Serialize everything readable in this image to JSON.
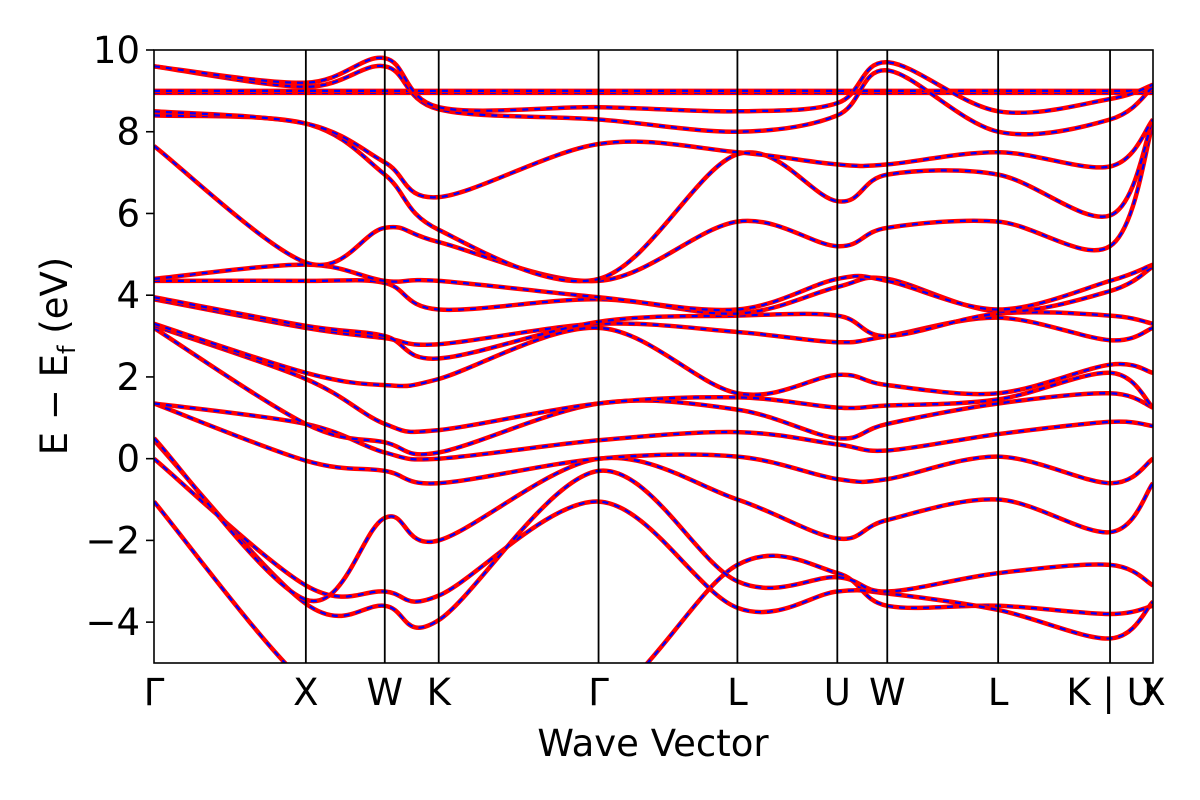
{
  "chart_data": {
    "type": "line",
    "xlabel": "Wave Vector",
    "ylabel_main": "E − E",
    "ylabel_sub": "f",
    "ylabel_unit": " (eV)",
    "ylim": [
      -5,
      10
    ],
    "xlim": [
      0,
      1
    ],
    "yticks": [
      {
        "v": -4,
        "label": "−4"
      },
      {
        "v": -2,
        "label": "−2"
      },
      {
        "v": 0,
        "label": "0"
      },
      {
        "v": 2,
        "label": "2"
      },
      {
        "v": 4,
        "label": "4"
      },
      {
        "v": 6,
        "label": "6"
      },
      {
        "v": 8,
        "label": "8"
      },
      {
        "v": 10,
        "label": "10"
      }
    ],
    "kpoints": [
      {
        "pos": 0.0,
        "label": "Γ"
      },
      {
        "pos": 0.152,
        "label": "X"
      },
      {
        "pos": 0.231,
        "label": "W"
      },
      {
        "pos": 0.285,
        "label": "K"
      },
      {
        "pos": 0.445,
        "label": "Γ"
      },
      {
        "pos": 0.584,
        "label": "L"
      },
      {
        "pos": 0.684,
        "label": "U"
      },
      {
        "pos": 0.734,
        "label": "W"
      },
      {
        "pos": 0.845,
        "label": "L"
      },
      {
        "pos": 0.957,
        "label": "K | U"
      },
      {
        "pos": 1.0,
        "label": "X"
      }
    ],
    "series_styles": [
      {
        "color": "#ff0000",
        "style": "solid"
      },
      {
        "color": "#0000ff",
        "style": "dashed"
      }
    ],
    "bands": [
      [
        -1.05,
        -5.5,
        -5.8,
        -5.9,
        -6.0,
        -2.6,
        -2.8,
        -3.6,
        -3.6,
        -3.8,
        -3.6
      ],
      [
        0.0,
        -3.1,
        -3.25,
        -3.35,
        -1.05,
        -3.65,
        -3.25,
        -3.3,
        -3.7,
        -4.4,
        -3.5
      ],
      [
        0.45,
        -3.55,
        -3.6,
        -3.95,
        -0.3,
        -3.0,
        -2.9,
        -3.25,
        -2.8,
        -2.6,
        -3.1
      ],
      [
        0.5,
        -3.45,
        -1.45,
        -2.0,
        0.0,
        -1.0,
        -1.95,
        -1.5,
        -1.0,
        -1.8,
        -0.6
      ],
      [
        1.35,
        -0.05,
        -0.3,
        -0.6,
        0.0,
        0.05,
        -0.5,
        -0.5,
        0.05,
        -0.6,
        0.0
      ],
      [
        1.35,
        0.85,
        0.15,
        0.0,
        0.45,
        0.65,
        0.35,
        0.2,
        0.6,
        0.9,
        0.8
      ],
      [
        3.2,
        0.85,
        0.4,
        0.15,
        1.35,
        1.2,
        0.5,
        0.85,
        1.35,
        1.6,
        1.25
      ],
      [
        3.25,
        1.95,
        0.85,
        0.7,
        1.35,
        1.5,
        1.25,
        1.3,
        1.45,
        2.1,
        1.25
      ],
      [
        3.3,
        2.1,
        1.8,
        1.95,
        3.2,
        1.6,
        2.05,
        1.8,
        1.6,
        2.3,
        2.1
      ],
      [
        3.9,
        3.2,
        2.95,
        2.8,
        3.3,
        3.1,
        2.85,
        3.0,
        3.45,
        2.9,
        3.2
      ],
      [
        3.95,
        3.25,
        3.0,
        2.45,
        3.35,
        3.5,
        3.5,
        3.0,
        3.55,
        3.5,
        3.3
      ],
      [
        4.35,
        4.35,
        4.3,
        3.65,
        3.9,
        3.55,
        4.2,
        4.4,
        3.6,
        4.1,
        4.7
      ],
      [
        4.4,
        4.75,
        4.35,
        4.35,
        3.95,
        3.65,
        4.4,
        4.35,
        3.65,
        4.35,
        4.75
      ],
      [
        7.65,
        4.8,
        5.65,
        5.3,
        4.35,
        5.8,
        5.2,
        5.65,
        5.8,
        5.2,
        8.2
      ],
      [
        8.4,
        8.2,
        6.95,
        5.6,
        4.4,
        7.45,
        6.3,
        6.95,
        6.95,
        5.95,
        8.3
      ],
      [
        8.5,
        8.2,
        7.25,
        6.4,
        7.7,
        7.5,
        7.2,
        7.2,
        7.5,
        7.15,
        8.3
      ],
      [
        8.95,
        8.95,
        8.95,
        8.95,
        8.95,
        8.95,
        8.95,
        8.95,
        8.95,
        8.95,
        8.95
      ],
      [
        9.0,
        9.0,
        9.0,
        9.0,
        9.0,
        9.0,
        9.0,
        9.0,
        9.0,
        9.0,
        9.0
      ],
      [
        9.6,
        9.1,
        9.6,
        8.55,
        8.3,
        8.0,
        8.4,
        9.5,
        8.0,
        8.3,
        9.1
      ],
      [
        9.6,
        9.2,
        9.8,
        8.6,
        8.6,
        8.5,
        8.7,
        9.7,
        8.5,
        8.8,
        9.15
      ]
    ]
  }
}
